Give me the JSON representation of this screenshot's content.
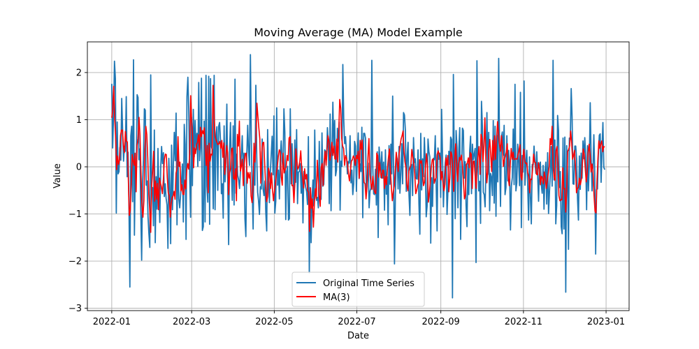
{
  "chart_data": {
    "type": "line",
    "title": "Moving Average (MA) Model Example",
    "xlabel": "Date",
    "ylabel": "Value",
    "xlim": [
      "2021-12-14",
      "2023-01-18"
    ],
    "ylim": [
      -3.05,
      2.65
    ],
    "grid": true,
    "legend_position": "lower center",
    "x_ticks": [
      "2022-01-01",
      "2022-03-01",
      "2022-05-01",
      "2022-07-01",
      "2022-09-01",
      "2022-11-01",
      "2023-01-01"
    ],
    "x_tick_labels": [
      "2022-01",
      "2022-03",
      "2022-05",
      "2022-07",
      "2022-09",
      "2022-11",
      "2023-01"
    ],
    "y_ticks": [
      -3,
      -2,
      -1,
      0,
      1,
      2
    ],
    "y_tick_labels": [
      "−3",
      "−2",
      "−1",
      "0",
      "1",
      "2"
    ],
    "x_start": "2022-01-01",
    "x_end": "2022-12-31",
    "series": [
      {
        "name": "Original Time Series",
        "color": "#1f77b4",
        "values": [
          1.76,
          0.4,
          1.1,
          2.24,
          1.87,
          -0.98,
          0.95,
          -0.15,
          -0.1,
          0.41,
          0.14,
          1.45,
          0.76,
          0.12,
          0.44,
          0.33,
          1.49,
          -0.21,
          0.31,
          -0.85,
          -2.55,
          0.65,
          0.86,
          -0.74,
          2.27,
          -1.45,
          0.05,
          -0.19,
          1.53,
          1.47,
          0.15,
          0.38,
          -0.89,
          -1.98,
          -0.35,
          0.16,
          1.23,
          1.2,
          -0.39,
          -0.3,
          -1.05,
          -1.42,
          -1.71,
          1.95,
          -0.51,
          -0.44,
          -1.25,
          0.78,
          -1.61,
          -0.21,
          -0.9,
          0.39,
          -0.51,
          -1.18,
          -0.03,
          0.43,
          0.07,
          0.3,
          -0.63,
          -0.36,
          -0.67,
          -0.81,
          -1.73,
          0.18,
          -0.4,
          -1.63,
          0.46,
          -0.91,
          0.05,
          0.73,
          0.13,
          1.14,
          -1.23,
          0.4,
          -0.68,
          -0.87,
          -0.58,
          -0.31,
          0.06,
          -1.17,
          0.9,
          0.47,
          -1.54,
          1.49,
          1.9,
          1.18,
          -0.18,
          -1.07,
          1.05,
          -0.4,
          1.22,
          0.21,
          0.98,
          0.36,
          0.71,
          0.01,
          1.79,
          0.13,
          0.4,
          1.88,
          -1.35,
          -1.27,
          0.97,
          -1.17,
          1.94,
          -0.41,
          -0.75,
          1.92,
          -1.22,
          1.87,
          0.42,
          0.37,
          -0.89,
          1.94,
          -0.91,
          0.66,
          0.85,
          -0.5,
          0.86,
          0.94,
          0.56,
          -0.57,
          -0.36,
          -1.09,
          0.87,
          -0.32,
          0.18,
          1.33,
          -0.4,
          -1.65,
          0.36,
          0.94,
          -0.01,
          -0.71,
          0.87,
          -0.81,
          1.86,
          -0.56,
          0.27,
          -0.18,
          -0.28,
          -0.46,
          -0.09,
          0.27,
          0.66,
          -0.13,
          0.29,
          -1.11,
          -1.48,
          0.23,
          0.88,
          0.31,
          0.03,
          2.38,
          0.56,
          -0.48,
          -1.32,
          0.42,
          -0.39,
          1.73,
          0.21,
          -0.54,
          -0.72,
          -1.01,
          -0.42,
          -0.47,
          0.59,
          -0.47,
          -0.61,
          -0.3,
          -0.97,
          -1.36,
          0.79,
          -0.26,
          -0.76,
          -0.11,
          0.27,
          0.65,
          -0.17,
          1.08,
          -0.98,
          -0.73,
          1.25,
          -0.39,
          -0.07,
          -0.68,
          0.23,
          0.55,
          0.13,
          -0.04,
          1.23,
          0.73,
          -1.12,
          -0.1,
          0.01,
          -1.13,
          -1.1,
          1.23,
          -0.36,
          0.49,
          -0.17,
          -0.5,
          0.57,
          -0.33,
          0.79,
          -0.78,
          -0.11,
          -0.1,
          0.07,
          -0.56,
          0.01,
          -1.19,
          -0.1,
          -0.31,
          -0.43,
          -0.52,
          -0.8,
          0.64,
          -2.25,
          -0.44,
          -1.61,
          -0.72,
          -0.28,
          -0.83,
          0.78,
          -0.54,
          -0.71,
          -0.65,
          -0.87,
          0.54,
          -0.47,
          -0.69,
          0.72,
          -0.41,
          -0.37,
          0.36,
          0.33,
          0.15,
          0.83,
          0.51,
          -0.78,
          1.12,
          -0.93,
          0.24,
          1.37,
          0.4,
          0.98,
          -0.19,
          -0.07,
          0.82,
          0.54,
          0.95,
          -0.92,
          0.12,
          0.01,
          2.17,
          1.0,
          0.49,
          0.64,
          0.3,
          -0.15,
          0.11,
          0.08,
          0.66,
          -0.34,
          -0.07,
          -0.59,
          -0.35,
          0.54,
          0.44,
          -0.52,
          0.22,
          0.72,
          -0.25,
          0.06,
          -0.1,
          0.84,
          -1.08,
          0.71,
          0.71,
          0.61,
          -0.54,
          -0.26,
          0.08,
          -0.87,
          -0.52,
          -0.45,
          2.26,
          0.02,
          -0.57,
          -0.59,
          -0.05,
          -0.81,
          0.32,
          -1.5,
          0.42,
          0.16,
          -0.23,
          0.32,
          -0.24,
          0.1,
          -0.92,
          0.36,
          -0.58,
          -0.21,
          -1.23,
          0.45,
          -0.37,
          0.48,
          -0.15,
          1.5,
          -0.11,
          -2.06,
          -0.57,
          0.24,
          0.17,
          -0.47,
          0.43,
          -0.56,
          -0.15,
          0.49,
          -0.36,
          1.15,
          1.1,
          0.78,
          -0.52,
          0.23,
          0.52,
          -0.59,
          -1.03,
          0.04,
          0.05,
          -0.61,
          0.62,
          0.09,
          0.17,
          -0.25,
          -0.26,
          0.36,
          -0.79,
          -1.43,
          0.71,
          -0.49,
          0.17,
          -0.21,
          0.62,
          0.05,
          -1.06,
          -0.83,
          0.59,
          0.32,
          0.21,
          -1.62,
          -0.23,
          -0.84,
          0.18,
          0.15,
          0.66,
          -0.35,
          -1.36,
          0.4,
          0.16,
          0.29,
          -0.65,
          1.22,
          0.24,
          -0.85,
          -0.23,
          0.08,
          0.25,
          -1.01,
          -0.5,
          0.33,
          0.05,
          0.63,
          0.58,
          -2.78,
          1.96,
          0.09,
          -1.1,
          0.77,
          0.42,
          -0.87,
          0.36,
          0.83,
          -1.54,
          -0.2,
          0.82,
          0.77,
          -0.24,
          0.11,
          -0.82,
          -1.27,
          0.06,
          -0.59,
          0.34,
          0.65,
          -0.57,
          0.48,
          0.15,
          0.27,
          0.39,
          -2.03,
          2.25,
          0.13,
          -0.51,
          -0.31,
          -1.2,
          1.39,
          0.86,
          -0.54,
          -0.59,
          -0.85,
          0.01,
          1.15,
          -0.16,
          0.73,
          -0.93,
          -0.14,
          -0.22,
          -0.61,
          0.98,
          -0.77,
          0.86,
          -1.05,
          0.67,
          -0.32,
          2.3,
          0.27,
          -0.84,
          0.63,
          0.74,
          0.24,
          0.88,
          -0.59,
          -0.44,
          0.66,
          -0.3,
          0.35,
          -0.02,
          -1.34,
          -0.41,
          -0.23,
          0.8,
          -0.38,
          1.75,
          -0.51,
          -0.34,
          0.48,
          0.09,
          -0.4,
          1.58,
          -1.29,
          0.24,
          -0.11,
          1.82,
          -0.39,
          0.09,
          0.35,
          -0.39,
          -1.13,
          0.21,
          -0.63,
          -1.21,
          0.05,
          0.04,
          0.44,
          0.1,
          -0.14,
          0.32,
          -0.19,
          -0.73,
          0.05,
          0.1,
          -0.38,
          -0.56,
          0.03,
          -0.9,
          -0.12,
          0.1,
          -0.79,
          0.3,
          -0.99,
          -0.55,
          -0.11,
          0.43,
          -0.41,
          2.26,
          -0.28,
          0.57,
          -1.21,
          -0.82,
          1.09,
          0.77,
          -0.44,
          -0.1,
          -1.27,
          -1.42,
          0.61,
          -1.32,
          0.63,
          -2.66,
          0.45,
          -0.18,
          -1.75,
          0.61,
          0.58,
          1.66,
          1.06,
          -0.36,
          -0.37,
          0.44,
          0.44,
          0.16,
          -0.68,
          -1.13,
          0.23,
          -0.48,
          0.29,
          -0.24,
          0.55,
          0.17,
          0.62,
          0.21,
          -0.91,
          0.45,
          -0.51,
          0.08,
          1.36,
          0.19,
          -0.51,
          -0.1,
          0.68,
          -0.12,
          -1.85,
          -0.48,
          -0.47,
          0.27,
          0.67,
          0.7,
          -0.33,
          0.35,
          0.94,
          -0.01,
          -0.06
        ]
      },
      {
        "name": "MA(3)",
        "color": "#ff0000",
        "values": [
          1.04,
          1.21,
          1.71,
          1.04,
          0.61,
          -0.06,
          0.23,
          0.05,
          0.15,
          0.67,
          0.78,
          0.78,
          0.44,
          0.3,
          0.75,
          0.54,
          0.53,
          -0.25,
          -1.03,
          -0.92,
          -0.35,
          0.26,
          0.13,
          0.03,
          0.29,
          -0.53,
          0.46,
          0.6,
          1.05,
          0.67,
          -0.12,
          -0.83,
          -1.07,
          -0.72,
          0.35,
          0.86,
          0.68,
          0.17,
          -0.58,
          -0.92,
          -1.39,
          -0.39,
          -0.09,
          0.33,
          -0.73,
          -0.3,
          -0.69,
          -0.35,
          -0.91,
          -0.24,
          -0.34,
          -0.43,
          -0.57,
          -0.26,
          0.16,
          0.27,
          0.26,
          -0.23,
          -0.55,
          -0.61,
          -1.07,
          -0.79,
          -0.65,
          -0.62,
          -0.52,
          -0.69,
          -0.13,
          -0.04,
          0.64,
          0.01,
          0.1,
          -0.51,
          -0.38,
          -0.58,
          -0.59,
          -0.28,
          -0.47,
          -0.07,
          0.07,
          -0.05,
          0.27,
          1.51,
          0.97,
          0.64,
          -0.02,
          0.4,
          0.28,
          0.47,
          0.52,
          0.68,
          0.36,
          0.84,
          0.64,
          0.77,
          0.7,
          0.83,
          0.37,
          0.03,
          0.45,
          -0.55,
          0.5,
          0.12,
          0.27,
          0.25,
          1.73,
          1.12,
          0.66,
          0.57,
          0.52,
          0.47,
          0.49,
          0.54,
          0.39,
          0.56,
          0.2,
          0.51,
          -0.16,
          0.1,
          0.45,
          0.3,
          -0.59,
          -0.13,
          -0.03,
          0.38,
          0.4,
          -0.24,
          -0.27,
          -0.04,
          -0.72,
          0.69,
          0.44,
          0.97,
          -0.09,
          0.01,
          0.16,
          -0.4,
          0.06,
          0.28,
          0.29,
          -0.35,
          -0.12,
          -0.24,
          -0.12,
          -0.62,
          -0.76,
          -0.46,
          0.5,
          0.1,
          0.58,
          1.35,
          1.07,
          0.82,
          0.59,
          -0.35,
          0.31,
          0.51,
          0.52,
          0.05,
          -0.42,
          -0.74,
          -0.63,
          -0.03,
          -0.16,
          -0.46,
          -0.13,
          -0.48,
          -0.72,
          -0.51,
          -0.38,
          -0.14,
          0.02,
          0.22,
          0.36,
          0.31,
          -0.21,
          -0.39,
          0.29,
          -0.13,
          -0.05,
          0.0,
          0.24,
          0.13,
          0.61,
          0.64,
          0.27,
          -0.4,
          -0.39,
          -0.76,
          -0.33,
          0.38,
          0.12,
          -0.05,
          0.0,
          0.12,
          0.34,
          -0.03,
          -0.25,
          -0.45,
          -0.04,
          -0.26,
          -0.16,
          -0.5,
          -0.54,
          -1.37,
          -0.45,
          -0.88,
          -0.68,
          -1.28,
          -0.78,
          -0.46,
          -0.67,
          0.14,
          -0.27,
          -0.61,
          -0.84,
          -0.02,
          0.07,
          -0.4,
          0.11,
          0.33,
          0.03,
          0.36,
          0.66,
          0.53,
          0.14,
          0.28,
          0.52,
          0.24,
          0.44,
          0.17,
          0.16,
          0.59,
          0.1,
          0.73,
          1.43,
          1.25,
          0.6,
          0.44,
          0.39,
          0.03,
          0.24,
          0.18,
          0.07,
          -0.16,
          -0.3,
          -0.07,
          0.12,
          0.15,
          0.23,
          0.19,
          0.03,
          0.24,
          0.17,
          0.33,
          -0.24,
          0.56,
          0.37,
          0.57,
          0.15,
          -0.33,
          -0.36,
          -0.68,
          -0.43,
          0.21,
          0.6,
          -0.17,
          -0.35,
          -0.48,
          -0.2,
          -0.46,
          -0.54,
          -0.57,
          0.29,
          0.24,
          -0.22,
          0.09,
          -0.14,
          -0.24,
          -0.07,
          -0.08,
          -0.46,
          -0.2,
          -0.38,
          -0.03,
          0.19,
          0.38,
          -0.06,
          -0.44,
          -0.72,
          -0.52,
          -0.41,
          -0.06,
          0.31,
          0.12,
          -0.1,
          0.27,
          0.45,
          0.59,
          0.66,
          0.76,
          0.32,
          0.1,
          -0.02,
          -0.39,
          -0.51,
          -0.09,
          -0.02,
          0.03,
          0.37,
          0.21,
          0.09,
          -0.14,
          -0.57,
          -0.5,
          -0.39,
          -0.34,
          0.15,
          0.08,
          0.13,
          -0.12,
          -0.4,
          -0.33,
          -0.04,
          0.28,
          0.03,
          -0.75,
          -0.56,
          -0.3,
          0.0,
          0.15,
          0.17,
          -0.35,
          -0.27,
          -0.23,
          0.26,
          0.34,
          0.27,
          0.2,
          -0.28,
          -0.1,
          -0.34,
          -0.51,
          -0.37,
          0.19,
          0.03,
          0.24,
          -0.53,
          -0.24,
          0.32,
          0.26,
          -0.07,
          -0.52,
          0.11,
          0.49,
          0.1,
          -0.31,
          0.07,
          0.2,
          0.14,
          0.25,
          0.02,
          -0.32,
          -0.68,
          -0.6,
          0.05,
          0.08,
          0.19,
          -0.02,
          0.3,
          0.27,
          -0.46,
          0.12,
          0.12,
          -0.19,
          -0.46,
          0.01,
          0.23,
          0.43,
          -0.16,
          0.69,
          0.6,
          0.11,
          0.43,
          1.04,
          0.15,
          -0.34,
          -0.1,
          0.38,
          0.58,
          0.26,
          -0.1,
          0.56,
          0.14,
          0.66,
          0.16,
          0.58,
          0.96,
          0.71,
          0.49,
          0.33,
          0.66,
          0.41,
          0.01,
          0.15,
          0.23,
          0.31,
          0.49,
          -0.24,
          -0.4,
          0.05,
          0.39,
          0.16,
          0.31,
          0.15,
          0.17,
          0.17,
          0.16,
          0.26,
          0.34,
          0.47,
          -0.21,
          -0.28,
          0.17,
          0.37,
          0.11,
          0.07,
          0.08,
          -0.13,
          -0.2,
          -0.55,
          -0.26,
          -0.27,
          -0.05,
          0.27,
          0.1,
          0.09,
          -0.16,
          -0.17,
          0.09,
          -0.05,
          -0.38,
          -0.2,
          -0.24,
          -0.36,
          -0.11,
          -0.23,
          -0.46,
          -0.3,
          -0.15,
          0.01,
          0.6,
          0.47,
          0.86,
          0.01,
          -0.22,
          -0.29,
          0.34,
          0.43,
          0.08,
          -0.61,
          -0.72,
          -0.7,
          -0.7,
          -0.02,
          -0.47,
          -0.46,
          -0.96,
          -0.5,
          0.33,
          0.37,
          0.44,
          0.76,
          0.53,
          0.16,
          0.24,
          0.35,
          0.01,
          -0.55,
          -0.46,
          -0.44,
          -0.24,
          -0.38,
          -0.27,
          0.07,
          0.38,
          0.26,
          -0.03,
          -0.32,
          -0.13,
          0.31,
          0.48,
          0.25,
          -0.11,
          0.06,
          -0.09,
          -0.6,
          -0.94,
          -0.98,
          -0.34,
          0.16,
          0.55,
          0.39,
          0.48,
          0.55,
          0.32,
          0.43,
          0.42
        ]
      }
    ]
  }
}
